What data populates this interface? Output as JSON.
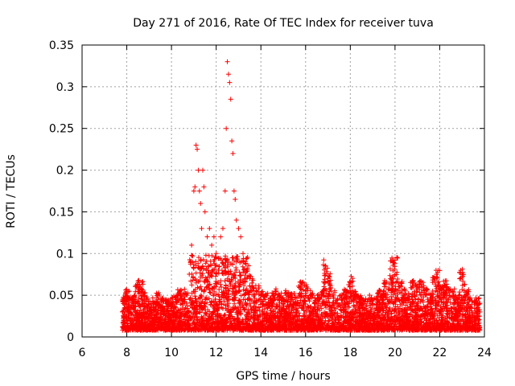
{
  "chart_data": {
    "type": "scatter",
    "title": "Day 271 of 2016, Rate Of TEC Index for receiver tuva",
    "xlabel": "GPS time / hours",
    "ylabel": "ROTI / TECUs",
    "xlim": [
      6,
      24
    ],
    "ylim": [
      0,
      0.35
    ],
    "x_ticks": [
      6,
      8,
      10,
      12,
      14,
      16,
      18,
      20,
      22,
      24
    ],
    "x_tick_labels": [
      "6",
      "8",
      "10",
      "12",
      "14",
      "16",
      "18",
      "20",
      "22",
      "24"
    ],
    "y_ticks": [
      0,
      0.05,
      0.1,
      0.15,
      0.2,
      0.25,
      0.3,
      0.35
    ],
    "y_tick_labels": [
      "0",
      "0.05",
      "0.1",
      "0.15",
      "0.2",
      "0.25",
      "0.3",
      "0.35"
    ],
    "grid": true,
    "marker": "+",
    "color": "#ff0000",
    "series": [
      {
        "name": "ROTI",
        "x": [
          7.8,
          7.85,
          7.9,
          8.0,
          8.1,
          8.2,
          8.3,
          8.4,
          8.5,
          8.6,
          8.65,
          8.7,
          8.8,
          9.0,
          9.2,
          9.4,
          9.6,
          9.8,
          10.0,
          10.2,
          10.4,
          10.5,
          10.6,
          10.7,
          10.8,
          10.9,
          11.0,
          11.05,
          11.1,
          11.15,
          11.2,
          11.25,
          11.3,
          11.35,
          11.4,
          11.45,
          11.5,
          11.6,
          11.7,
          11.8,
          11.9,
          12.0,
          12.1,
          12.2,
          12.3,
          12.4,
          12.45,
          12.5,
          12.55,
          12.6,
          12.65,
          12.7,
          12.75,
          12.8,
          12.85,
          12.9,
          13.0,
          13.1,
          13.2,
          13.3,
          13.4,
          13.5,
          13.6,
          13.8,
          14.0,
          14.2,
          14.4,
          14.6,
          14.8,
          15.0,
          15.2,
          15.4,
          15.6,
          15.8,
          16.0,
          16.2,
          16.4,
          16.6,
          16.8,
          16.9,
          17.0,
          17.2,
          17.4,
          17.6,
          17.8,
          18.0,
          18.2,
          18.4,
          18.6,
          18.8,
          19.0,
          19.2,
          19.4,
          19.6,
          19.8,
          19.9,
          20.0,
          20.2,
          20.4,
          20.6,
          20.8,
          21.0,
          21.2,
          21.4,
          21.6,
          21.8,
          21.9,
          22.0,
          22.2,
          22.4,
          22.6,
          22.8,
          23.0,
          23.2,
          23.4,
          23.7,
          23.75,
          23.8
        ],
        "y": [
          0.03,
          0.025,
          0.04,
          0.05,
          0.045,
          0.035,
          0.04,
          0.045,
          0.055,
          0.06,
          0.058,
          0.05,
          0.04,
          0.035,
          0.04,
          0.045,
          0.035,
          0.04,
          0.04,
          0.045,
          0.05,
          0.04,
          0.045,
          0.05,
          0.045,
          0.11,
          0.175,
          0.18,
          0.23,
          0.225,
          0.2,
          0.175,
          0.16,
          0.13,
          0.2,
          0.18,
          0.15,
          0.12,
          0.13,
          0.11,
          0.12,
          0.1,
          0.08,
          0.12,
          0.13,
          0.175,
          0.25,
          0.33,
          0.315,
          0.305,
          0.285,
          0.235,
          0.22,
          0.175,
          0.165,
          0.14,
          0.13,
          0.12,
          0.1,
          0.09,
          0.08,
          0.07,
          0.06,
          0.055,
          0.05,
          0.045,
          0.04,
          0.05,
          0.045,
          0.04,
          0.05,
          0.045,
          0.04,
          0.06,
          0.055,
          0.05,
          0.04,
          0.045,
          0.05,
          0.085,
          0.07,
          0.05,
          0.04,
          0.045,
          0.05,
          0.065,
          0.05,
          0.045,
          0.04,
          0.045,
          0.04,
          0.045,
          0.05,
          0.06,
          0.07,
          0.09,
          0.092,
          0.06,
          0.05,
          0.045,
          0.06,
          0.055,
          0.06,
          0.05,
          0.045,
          0.07,
          0.072,
          0.05,
          0.06,
          0.055,
          0.05,
          0.045,
          0.075,
          0.05,
          0.035,
          0.035,
          0.03,
          0.03
        ]
      }
    ]
  }
}
